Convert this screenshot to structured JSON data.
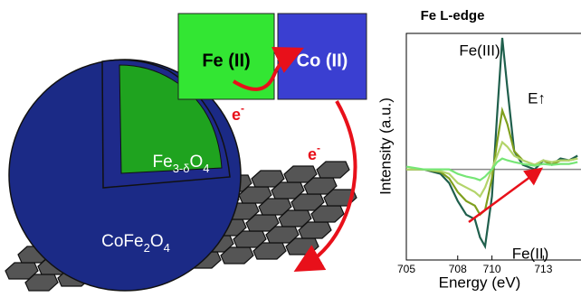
{
  "diagram": {
    "boxes": [
      {
        "label": "Fe (II)"
      },
      {
        "label": "Co (II)"
      }
    ],
    "electron_labels": [
      {
        "base": "e",
        "sup": "-"
      },
      {
        "base": "e",
        "sup": "-"
      }
    ],
    "core_label": [
      "Fe",
      "3-δ",
      "O",
      "4"
    ],
    "shell_label": [
      "CoFe",
      "2",
      "O",
      "4"
    ]
  },
  "chart_data": {
    "type": "line",
    "title": "Fe L-edge",
    "x_label": "Energy (eV)",
    "y_label": "Intensity (a.u.)",
    "annotations": [
      "Fe(III)",
      "Fe(II)",
      "E↑"
    ],
    "x": [
      705,
      706,
      707,
      707.5,
      708,
      708.5,
      709,
      709.3,
      709.6,
      710,
      710.3,
      710.6,
      710.9,
      711.3,
      711.8,
      712.5,
      713,
      713.5,
      714,
      714.5,
      715
    ],
    "series": [
      {
        "color": "#1f5f4c",
        "values": [
          0,
          0,
          -0.05,
          -0.15,
          -0.35,
          -0.5,
          -0.55,
          -0.75,
          -0.85,
          -0.3,
          0.6,
          1.45,
          0.9,
          0.2,
          0.05,
          0,
          0.1,
          0.05,
          0.12,
          0.1,
          0.15
        ]
      },
      {
        "color": "#7f9f1e",
        "values": [
          0,
          0,
          -0.03,
          -0.1,
          -0.25,
          -0.35,
          -0.4,
          -0.5,
          -0.45,
          -0.1,
          0.3,
          0.65,
          0.5,
          0.2,
          0.1,
          0.05,
          0.1,
          0.05,
          0.1,
          0.1,
          0.12
        ]
      },
      {
        "color": "#b3d46a",
        "values": [
          0,
          0,
          -0.02,
          -0.05,
          -0.15,
          -0.2,
          -0.25,
          -0.3,
          -0.2,
          0,
          0.15,
          0.3,
          0.25,
          0.15,
          0.1,
          0.05,
          0.1,
          0.08,
          0.1,
          0.1,
          0.12
        ]
      },
      {
        "color": "#76e676",
        "values": [
          0.03,
          0,
          0,
          0,
          -0.05,
          -0.08,
          -0.1,
          -0.12,
          -0.08,
          0,
          0.08,
          0.12,
          0.1,
          0.08,
          0.06,
          0.04,
          0.06,
          0.05,
          0.06,
          0.06,
          0.08
        ]
      }
    ],
    "reference_line": 0,
    "xlim": [
      705,
      715.2
    ],
    "ylim": [
      -1,
      1.5
    ],
    "xticks": [
      705,
      708,
      710,
      713
    ]
  }
}
